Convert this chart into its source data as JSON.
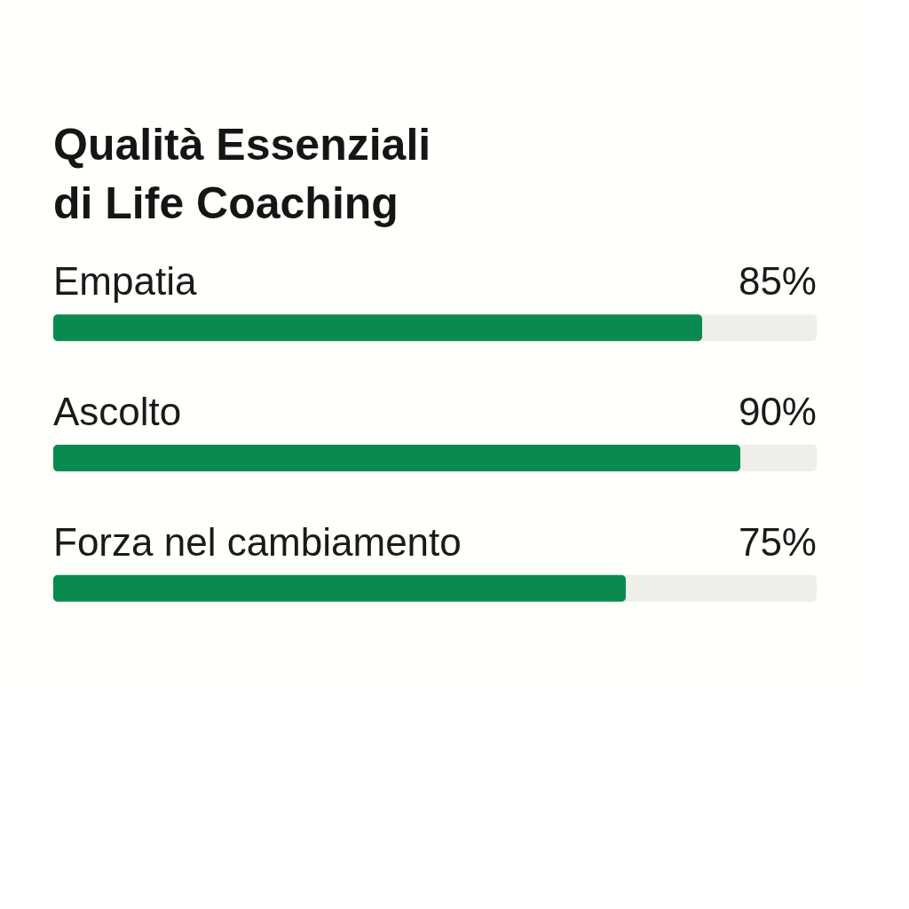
{
  "chart_data": {
    "type": "bar",
    "orientation": "horizontal",
    "title": "Qualità Essenziali di Life Coaching",
    "categories": [
      "Empatia",
      "Ascolto",
      "Forza nel cambiamento"
    ],
    "values": [
      85,
      90,
      75
    ],
    "color": "#0b8a50",
    "value_labels": [
      "85%",
      "90%",
      "75%"
    ],
    "xlim": [
      0,
      100
    ],
    "tick_labels": false
  }
}
